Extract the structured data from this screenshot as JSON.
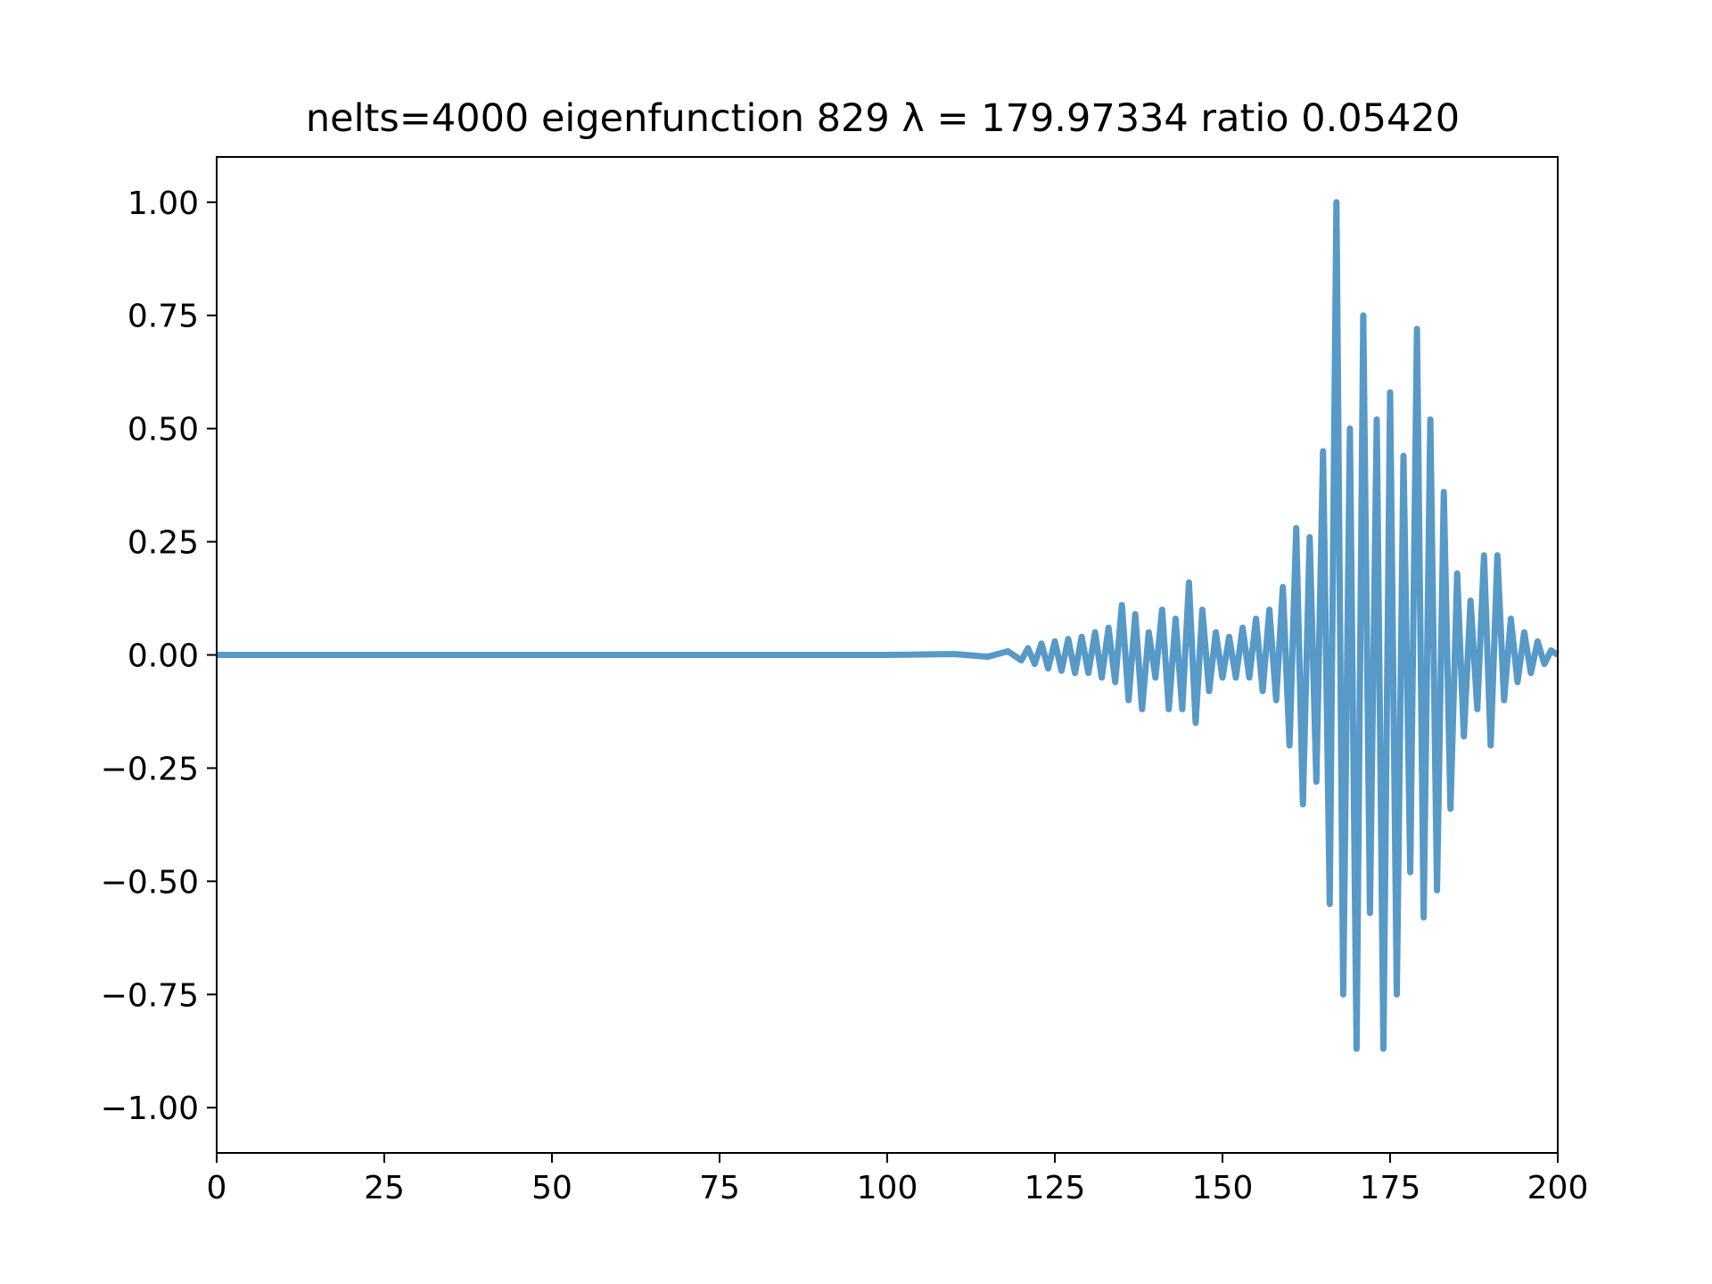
{
  "chart_data": {
    "type": "line",
    "title": "nelts=4000  eigenfunction 829  λ = 179.97334 ratio 0.05420",
    "xlabel": "",
    "ylabel": "",
    "xlim": [
      0,
      200
    ],
    "ylim": [
      -1.1,
      1.1
    ],
    "x_ticks": [
      0,
      25,
      50,
      75,
      100,
      125,
      150,
      175,
      200
    ],
    "x_tick_labels": [
      "0",
      "25",
      "50",
      "75",
      "100",
      "125",
      "150",
      "175",
      "200"
    ],
    "y_ticks": [
      1.0,
      0.75,
      0.5,
      0.25,
      0.0,
      -0.25,
      -0.5,
      -0.75,
      -1.0
    ],
    "y_tick_labels": [
      "1.00",
      "0.75",
      "0.50",
      "0.25",
      "0.00",
      "−0.25",
      "−0.50",
      "−0.75",
      "−1.00"
    ],
    "grid": false,
    "legend": "none",
    "series_color": "#5799c7",
    "series": [
      {
        "x": [
          0,
          20,
          40,
          60,
          80,
          100,
          110,
          115,
          118,
          120,
          121,
          122,
          123,
          124,
          125,
          126,
          127,
          128,
          129,
          130,
          131,
          132,
          133,
          134,
          135,
          136,
          137,
          138,
          139,
          140,
          141,
          142,
          143,
          144,
          145,
          146,
          147,
          148,
          149,
          150,
          151,
          152,
          153,
          154,
          155,
          156,
          157,
          158,
          159,
          160,
          161,
          162,
          163,
          164,
          165,
          166,
          167,
          168,
          169,
          170,
          171,
          172,
          173,
          174,
          175,
          176,
          177,
          178,
          179,
          180,
          181,
          182,
          183,
          184,
          185,
          186,
          187,
          188,
          189,
          190,
          191,
          192,
          193,
          194,
          195,
          196,
          197,
          198,
          199,
          200
        ],
        "y": [
          0,
          0,
          0,
          0,
          0,
          0,
          0.002,
          -0.004,
          0.008,
          -0.012,
          0.015,
          -0.02,
          0.025,
          -0.03,
          0.03,
          -0.035,
          0.035,
          -0.04,
          0.04,
          -0.04,
          0.05,
          -0.05,
          0.06,
          -0.06,
          0.11,
          -0.1,
          0.09,
          -0.12,
          0.05,
          -0.05,
          0.1,
          -0.12,
          0.08,
          -0.12,
          0.16,
          -0.15,
          0.1,
          -0.08,
          0.05,
          -0.05,
          0.04,
          -0.05,
          0.06,
          -0.05,
          0.08,
          -0.08,
          0.1,
          -0.1,
          0.15,
          -0.2,
          0.28,
          -0.33,
          0.26,
          -0.28,
          0.45,
          -0.55,
          1.0,
          -0.75,
          0.5,
          -0.87,
          0.75,
          -0.57,
          0.52,
          -0.87,
          0.58,
          -0.75,
          0.44,
          -0.48,
          0.72,
          -0.58,
          0.52,
          -0.52,
          0.36,
          -0.34,
          0.18,
          -0.18,
          0.12,
          -0.12,
          0.22,
          -0.2,
          0.22,
          -0.1,
          0.08,
          -0.06,
          0.05,
          -0.04,
          0.03,
          -0.02,
          0.01,
          0
        ]
      }
    ]
  }
}
